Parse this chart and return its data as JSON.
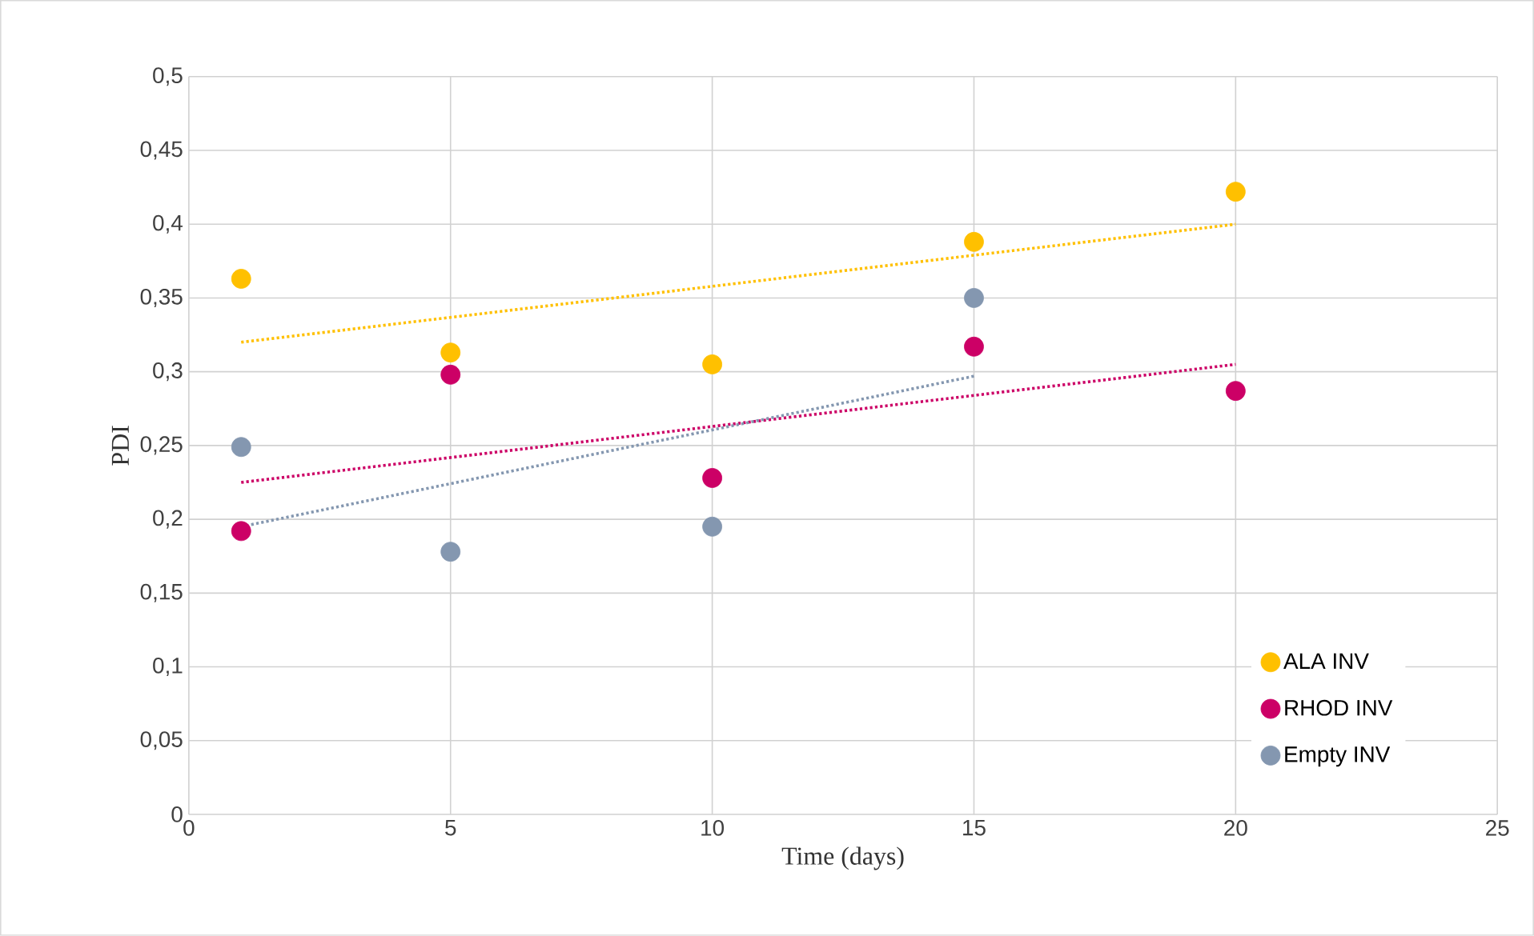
{
  "chart_data": {
    "type": "scatter",
    "xlabel": "Time (days)",
    "ylabel": "PDI",
    "marker": "circle",
    "grid": true,
    "legend": "bottom right",
    "xlim": [
      0,
      25
    ],
    "xticks": [
      0,
      5,
      10,
      15,
      20,
      25
    ],
    "ylim": [
      0,
      0.5
    ],
    "yticks": [
      0,
      {
        "value": 0.05,
        "label": "0,05"
      },
      {
        "value": 0.1,
        "label": "0,1"
      },
      {
        "value": 0.15,
        "label": "0,15"
      },
      {
        "value": 0.2,
        "label": "0,2"
      },
      {
        "value": 0.25,
        "label": "0,25"
      },
      {
        "value": 0.3,
        "label": "0,3"
      },
      {
        "value": 0.35,
        "label": "0,35"
      },
      {
        "value": 0.4,
        "label": "0,4"
      },
      {
        "value": 0.45,
        "label": "0,45"
      },
      {
        "value": 0.5,
        "label": "0,5"
      }
    ],
    "series": [
      {
        "name": "ALA INV",
        "color": "#ffc000",
        "x": [
          1,
          5,
          10,
          15,
          20
        ],
        "values": [
          0.363,
          0.313,
          0.305,
          0.388,
          0.422
        ]
      },
      {
        "name": "RHOD INV",
        "color": "#cc0066",
        "x": [
          1,
          5,
          10,
          15,
          20
        ],
        "values": [
          0.192,
          0.298,
          0.228,
          0.317,
          0.287
        ]
      },
      {
        "name": "Empty INV",
        "color": "#8497b0",
        "x": [
          1,
          5,
          10,
          15
        ],
        "values": [
          0.249,
          0.178,
          0.195,
          0.35
        ]
      },
      {
        "type": "line",
        "marker": "none",
        "line_style": "dotted",
        "color": "#ffc000",
        "x": [
          1,
          20
        ],
        "values": [
          0.32,
          0.4
        ]
      },
      {
        "type": "line",
        "marker": "none",
        "line_style": "dotted",
        "color": "#cc0066",
        "x": [
          1,
          20
        ],
        "values": [
          0.225,
          0.305
        ]
      },
      {
        "type": "line",
        "marker": "none",
        "line_style": "dotted",
        "color": "#8497b0",
        "x": [
          1,
          15
        ],
        "values": [
          0.195,
          0.297
        ]
      }
    ]
  }
}
